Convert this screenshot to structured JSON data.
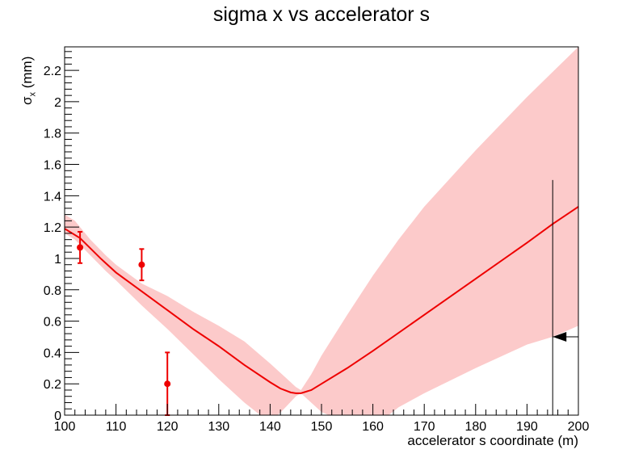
{
  "chart_data": {
    "type": "line",
    "title": "sigma x vs accelerator s",
    "xlabel": "accelerator s coordinate (m)",
    "ylabel_main": "σ",
    "ylabel_sub": "x",
    "ylabel_unit": " (mm)",
    "xlim": [
      100,
      200
    ],
    "ylim": [
      0,
      2.35
    ],
    "xticks": [
      100,
      110,
      120,
      130,
      140,
      150,
      160,
      170,
      180,
      190,
      200
    ],
    "yticks": [
      0,
      0.2,
      0.4,
      0.6,
      0.8,
      1,
      1.2,
      1.4,
      1.6,
      1.8,
      2,
      2.2
    ],
    "grid": false,
    "colors": {
      "line": "#ee0000",
      "band": "#fccaca",
      "points": "#ee0000",
      "marker": "#000000"
    },
    "fit_line": {
      "x": [
        100,
        103,
        107,
        110,
        115,
        120,
        125,
        130,
        135,
        140,
        142,
        144,
        145,
        146,
        148,
        150,
        155,
        160,
        170,
        180,
        190,
        195,
        200
      ],
      "y": [
        1.19,
        1.13,
        1.0,
        0.91,
        0.79,
        0.67,
        0.55,
        0.44,
        0.32,
        0.21,
        0.17,
        0.145,
        0.14,
        0.14,
        0.16,
        0.2,
        0.3,
        0.41,
        0.64,
        0.87,
        1.1,
        1.22,
        1.33
      ]
    },
    "band": {
      "x": [
        100,
        102,
        105,
        108,
        110,
        115,
        120,
        125,
        130,
        135,
        140,
        143,
        145,
        146,
        148,
        150,
        155,
        160,
        165,
        170,
        180,
        190,
        195,
        200
      ],
      "upper": [
        1.28,
        1.24,
        1.12,
        1.02,
        0.96,
        0.84,
        0.76,
        0.66,
        0.57,
        0.47,
        0.33,
        0.24,
        0.18,
        0.16,
        0.26,
        0.38,
        0.64,
        0.89,
        1.12,
        1.33,
        1.69,
        2.03,
        2.19,
        2.35
      ],
      "lower": [
        1.16,
        1.12,
        1.02,
        0.92,
        0.86,
        0.7,
        0.55,
        0.39,
        0.23,
        0.08,
        -0.05,
        0.05,
        0.12,
        0.14,
        0.08,
        0.02,
        -0.05,
        -0.08,
        0.05,
        0.14,
        0.3,
        0.45,
        0.5,
        0.57
      ]
    },
    "points": [
      {
        "x": 103,
        "y": 1.07,
        "err": 0.1
      },
      {
        "x": 115,
        "y": 0.96,
        "err": 0.1
      },
      {
        "x": 120,
        "y": 0.2,
        "err": 0.2
      }
    ],
    "marker": {
      "x": 195,
      "y_top": 1.5,
      "arrow_y": 0.5
    }
  }
}
